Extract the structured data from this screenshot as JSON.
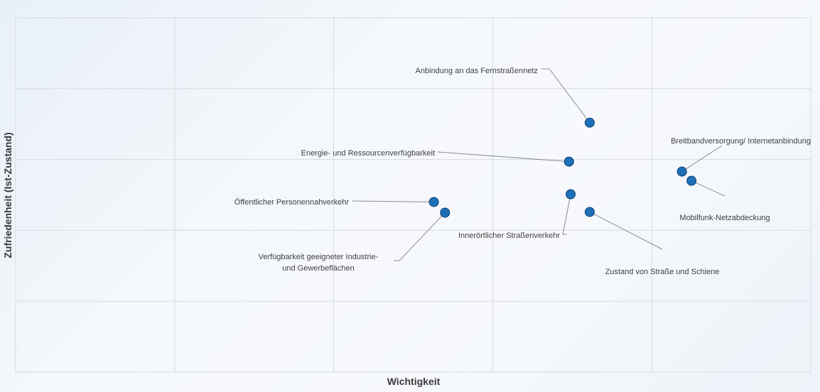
{
  "chart_data": {
    "type": "scatter",
    "xlabel": "Wichtigkeit",
    "ylabel": "Zufriedenheit (Ist-Zustand)",
    "xlim": [
      0,
      5
    ],
    "ylim": [
      0,
      5
    ],
    "grid": true,
    "marker_color": "#1f6fb8",
    "points": [
      {
        "name": "Anbindung an das Fernstraßennetz",
        "x": 3.61,
        "y": 3.52
      },
      {
        "name": "Energie- und Ressourcenverfügbarkeit",
        "x": 3.48,
        "y": 2.97
      },
      {
        "name": "Breitbandversorgung/ Internetanbindung",
        "x": 4.19,
        "y": 2.83
      },
      {
        "name": "Mobilfunk-Netzabdeckung",
        "x": 4.25,
        "y": 2.7
      },
      {
        "name": "Öffentlicher Personennahverkehr",
        "x": 2.63,
        "y": 2.4
      },
      {
        "name": "Verfügbarkeit geeigneter Industrie- und Gewerbeflächen",
        "x": 2.7,
        "y": 2.25
      },
      {
        "name": "Innerörtlicher Straßenverkehr",
        "x": 3.49,
        "y": 2.51
      },
      {
        "name": "Zustand von Straße und Schiene",
        "x": 3.61,
        "y": 2.26
      }
    ]
  }
}
